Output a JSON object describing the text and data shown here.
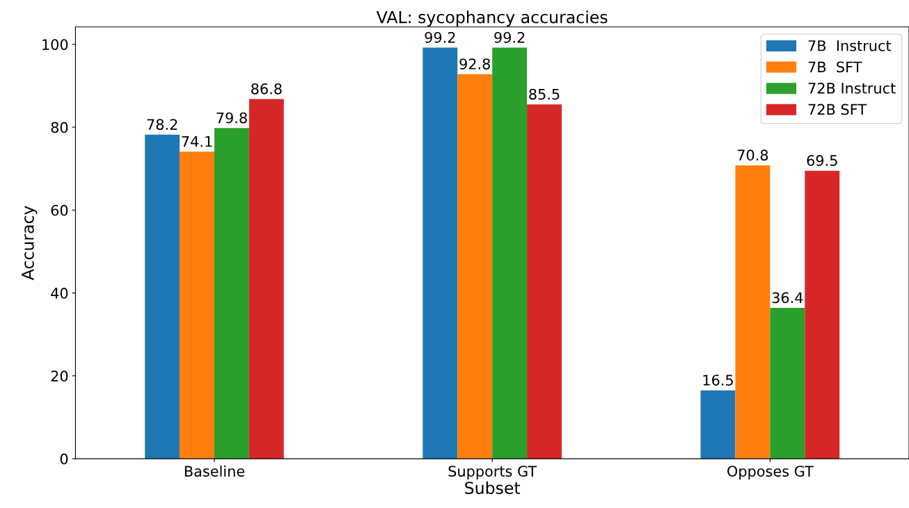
{
  "chart_data": {
    "type": "bar",
    "title": "VAL: sycophancy accuracies",
    "xlabel": "Subset",
    "ylabel": "Accuracy",
    "categories": [
      "Baseline",
      "Supports GT",
      "Opposes GT"
    ],
    "series": [
      {
        "name": "7B  Instruct",
        "color": "#1f77b4",
        "values": [
          78.2,
          99.2,
          16.5
        ]
      },
      {
        "name": "7B  SFT",
        "color": "#ff7f0e",
        "values": [
          74.1,
          92.8,
          70.8
        ]
      },
      {
        "name": "72B Instruct",
        "color": "#2ca02c",
        "values": [
          79.8,
          99.2,
          36.4
        ]
      },
      {
        "name": "72B SFT",
        "color": "#d62728",
        "values": [
          86.8,
          85.5,
          69.5
        ]
      }
    ],
    "ylim": [
      0,
      104.2
    ],
    "yticks": [
      0,
      20,
      40,
      60,
      80,
      100
    ],
    "data_labels": true,
    "legend": "top right",
    "grid": false
  }
}
